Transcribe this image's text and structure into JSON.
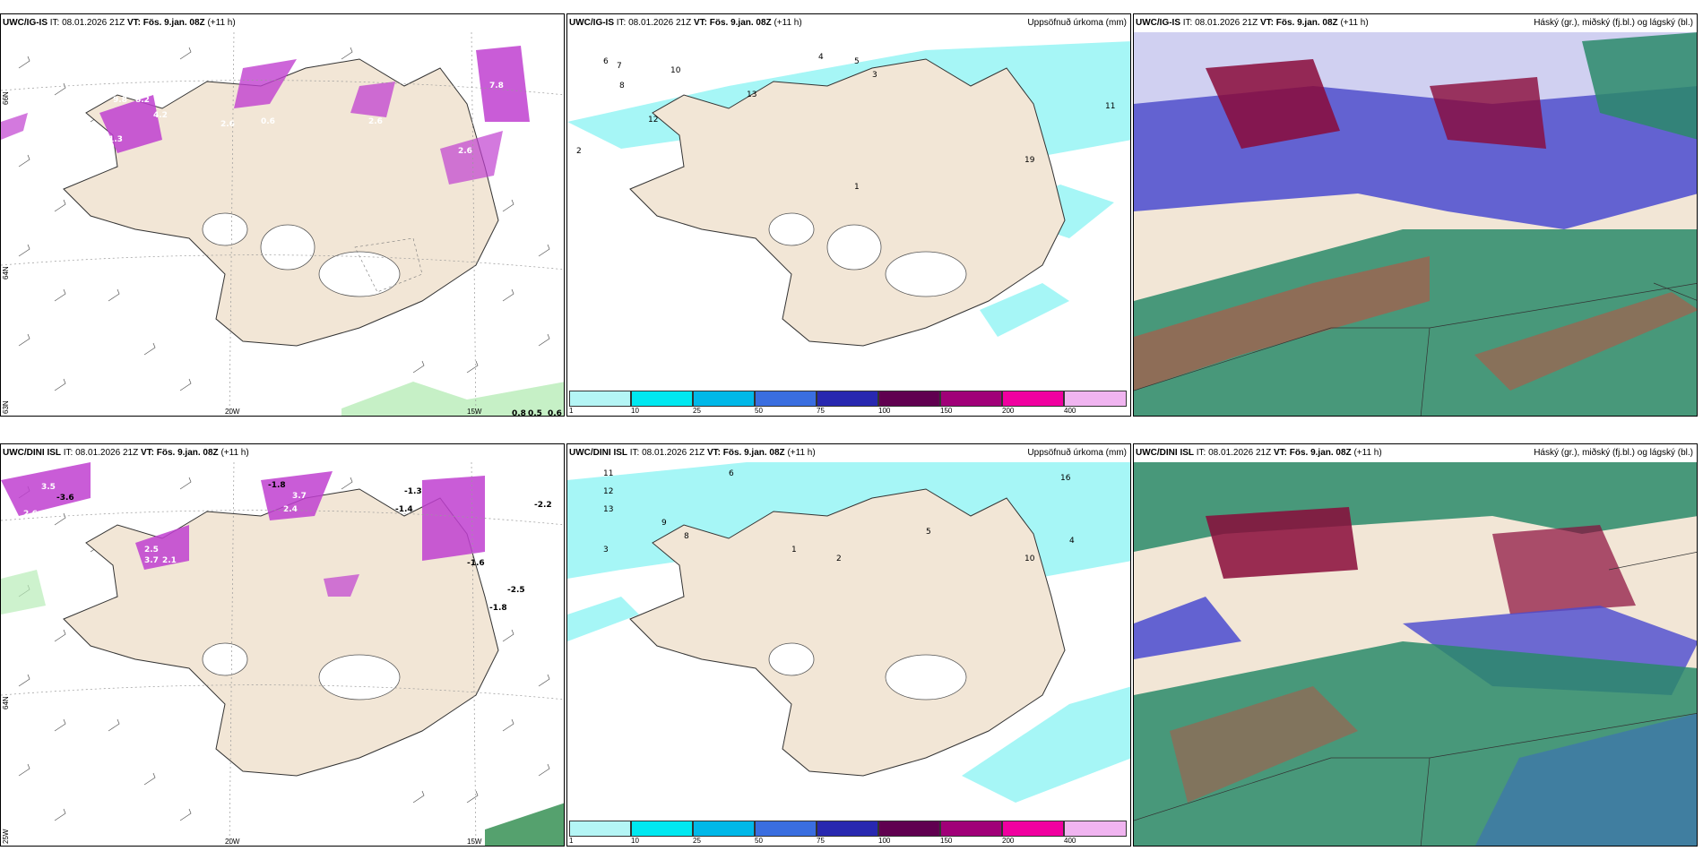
{
  "panels": [
    {
      "model": "UWC/IG-IS",
      "it": "IT: 08.01.2026 21Z",
      "vt": "VT: Fös. 9.jan. 08Z",
      "lead": "(+11 h)",
      "right_title": ""
    },
    {
      "model": "UWC/IG-IS",
      "it": "IT: 08.01.2026 21Z",
      "vt": "VT: Fös. 9.jan. 08Z",
      "lead": "(+11 h)",
      "right_title": "Uppsöfnuð úrkoma (mm)"
    },
    {
      "model": "UWC/IG-IS",
      "it": "IT: 08.01.2026 21Z",
      "vt": "VT: Fös. 9.jan. 08Z",
      "lead": "(+11 h)",
      "right_title": "Háský (gr.), miðský (fj.bl.) og lágský (bl.)"
    },
    {
      "model": "UWC/DINI ISL",
      "it": "IT: 08.01.2026 21Z",
      "vt": "VT: Fös. 9.jan. 08Z",
      "lead": "(+11 h)",
      "right_title": ""
    },
    {
      "model": "UWC/DINI ISL",
      "it": "IT: 08.01.2026 21Z",
      "vt": "VT: Fös. 9.jan. 08Z",
      "lead": "(+11 h)",
      "right_title": "Uppsöfnuð úrkoma (mm)"
    },
    {
      "model": "UWC/DINI ISL",
      "it": "IT: 08.01.2026 21Z",
      "vt": "VT: Fös. 9.jan. 08Z",
      "lead": "(+11 h)",
      "right_title": "Háský (gr.), miðský (fj.bl.) og lágský (bl.)"
    }
  ],
  "graticule": {
    "lat_66": "66N",
    "lat_64": "64N",
    "lat_63": "63N",
    "lon_25": "25W",
    "lon_20": "20W",
    "lon_15": "15W"
  },
  "colorbar": {
    "ticks": [
      "1",
      "10",
      "25",
      "50",
      "75",
      "100",
      "150",
      "200",
      "400"
    ],
    "colors": [
      "#b4f5f5",
      "#00e8f0",
      "#00b8e8",
      "#3a6ee0",
      "#2828b0",
      "#600050",
      "#a00078",
      "#f000a0",
      "#f0b4f0"
    ]
  },
  "colors": {
    "land": "#f2e6d6",
    "snow": "#a6f6f6",
    "pink": "#c040d0",
    "high_cloud": "#2a8a6a",
    "mid_cloud": "#3a3ac0",
    "low_cloud": "#8a0a3a"
  },
  "labels_top_left": [
    "9.8",
    "8.2",
    "4.2",
    "2.6",
    "1.3",
    "0.6",
    "2.6",
    "7.8",
    "1.9",
    "2.6",
    "0.8",
    "0.5",
    "0.6"
  ],
  "labels_bottom_left": [
    "3.5",
    "-3.6",
    "2.6",
    "-1.8",
    "3.7",
    "2.4",
    "-1.3",
    "-1.4",
    "2.5",
    "3.7",
    "2.1",
    "-1.6",
    "-2.2",
    "-2.5",
    "-1.8"
  ],
  "labels_top_mid": [
    "6",
    "7",
    "8",
    "10",
    "12",
    "13",
    "4",
    "5",
    "3",
    "2",
    "1",
    "19",
    "11"
  ],
  "labels_bottom_mid": [
    "11",
    "12",
    "13",
    "9",
    "8",
    "6",
    "10",
    "5",
    "4",
    "3",
    "2",
    "1",
    "16"
  ]
}
